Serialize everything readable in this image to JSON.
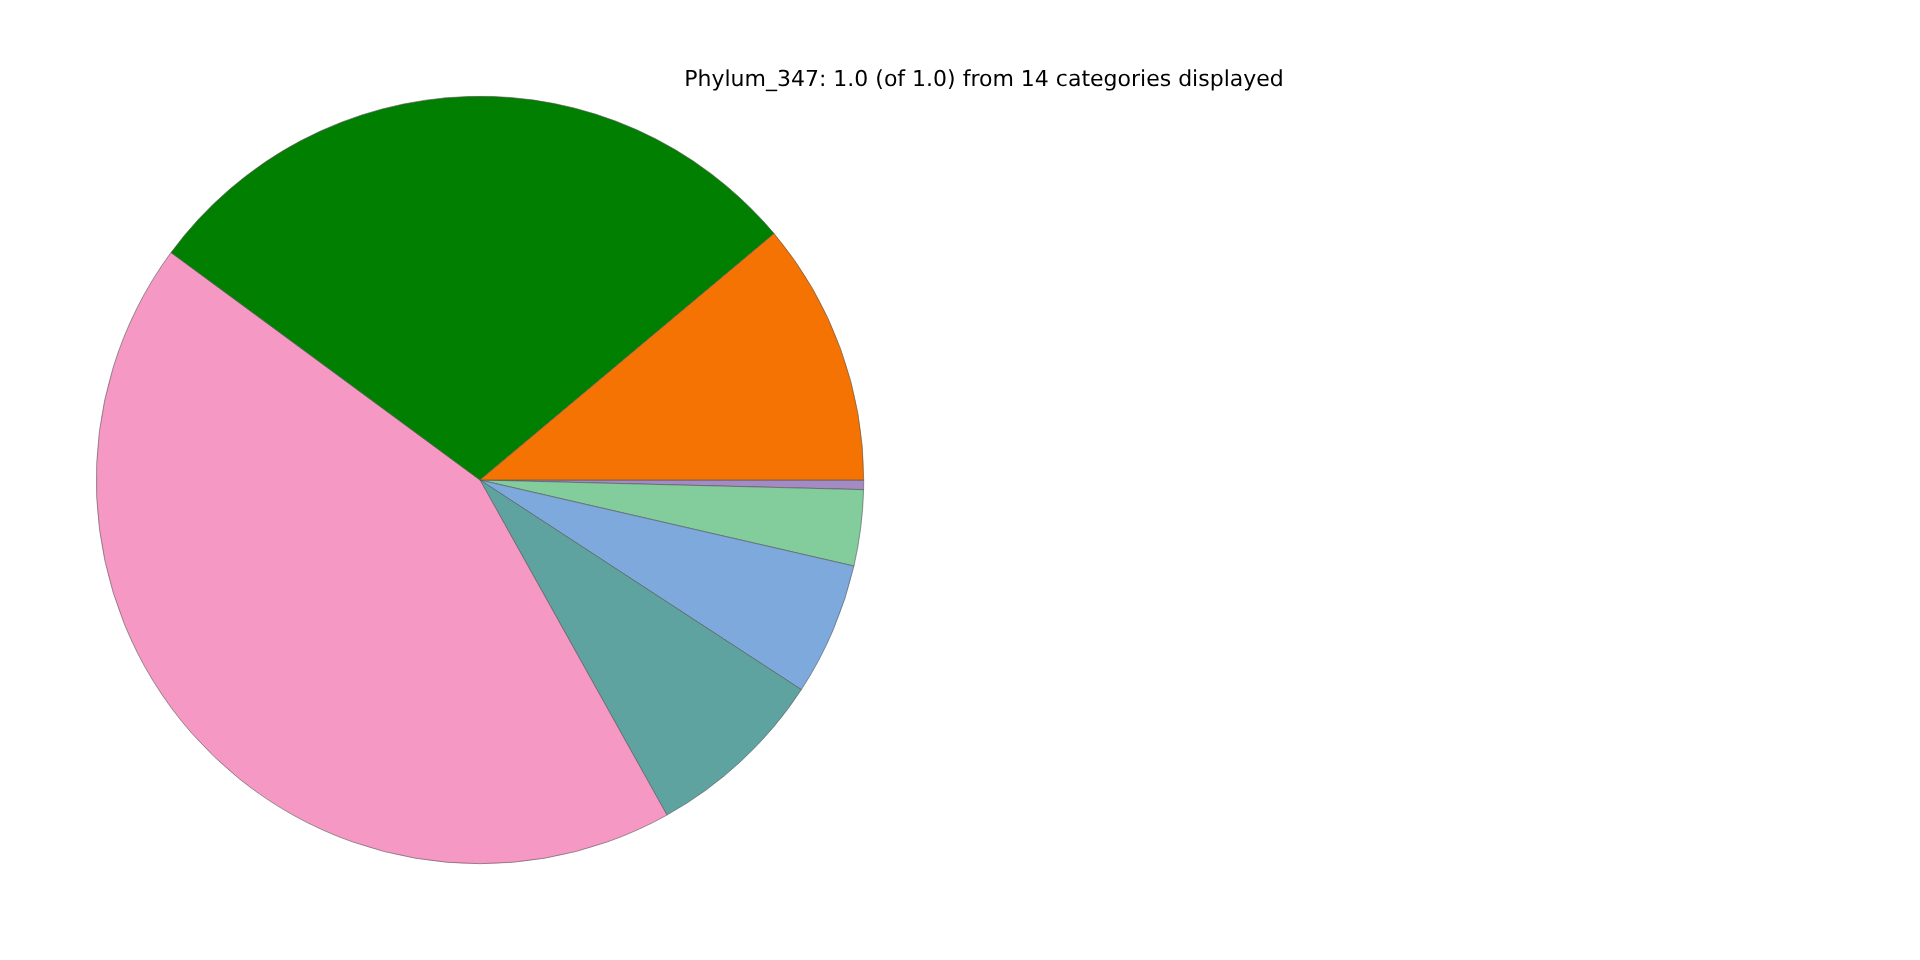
{
  "chart_data": {
    "type": "pie",
    "title": "Phylum_347: 1.0 (of 1.0) from 14 categories displayed",
    "categories": [
      null,
      null,
      null,
      null,
      null,
      null,
      null
    ],
    "values": [
      11.1,
      28.8,
      43.2,
      7.7,
      5.6,
      3.2,
      0.4
    ],
    "colors": [
      "#f47302",
      "#007f00",
      "#f599c4",
      "#5fa3a0",
      "#7ea9dc",
      "#83cc9c",
      "#a58bc4"
    ],
    "legend": false
  }
}
